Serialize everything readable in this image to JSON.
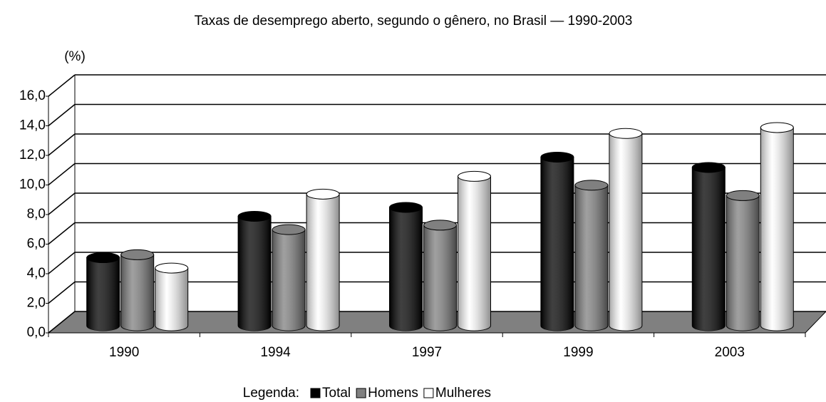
{
  "chart_data": {
    "type": "bar",
    "title": "Taxas de desemprego aberto, segundo o gênero, no Brasil — 1990-2003",
    "y_label": "(%)",
    "legend_title": "Legenda:",
    "categories": [
      "1990",
      "1994",
      "1997",
      "1999",
      "2003"
    ],
    "series": [
      {
        "name": "Total",
        "color": "#000000",
        "values": [
          4.6,
          7.4,
          8.0,
          11.4,
          10.7
        ]
      },
      {
        "name": "Homens",
        "color": "#808080",
        "values": [
          4.8,
          6.5,
          6.8,
          9.5,
          8.8
        ]
      },
      {
        "name": "Mulheres",
        "color": "#ffffff",
        "values": [
          3.9,
          8.9,
          10.1,
          13.0,
          13.4
        ]
      }
    ],
    "ylim": [
      0,
      16
    ],
    "yticks": [
      {
        "value": 0,
        "label": "0,0"
      },
      {
        "value": 2,
        "label": "2,0"
      },
      {
        "value": 4,
        "label": "4,0"
      },
      {
        "value": 6,
        "label": "6,0"
      },
      {
        "value": 8,
        "label": "8,0"
      },
      {
        "value": 10,
        "label": "10,0"
      },
      {
        "value": 12,
        "label": "12,0"
      },
      {
        "value": 14,
        "label": "14,0"
      },
      {
        "value": 16,
        "label": "16,0"
      }
    ],
    "grid": true
  }
}
